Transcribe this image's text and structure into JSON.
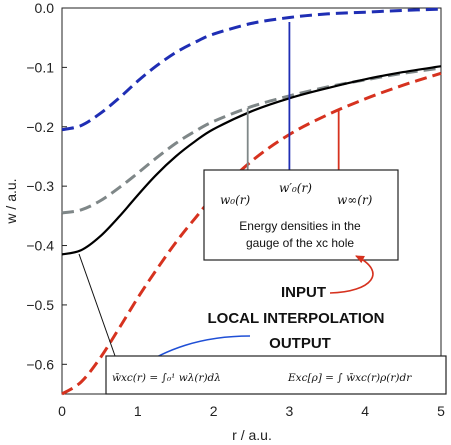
{
  "chart_data": {
    "type": "line",
    "title": "",
    "xlabel": "r / a.u.",
    "ylabel": "w / a.u.",
    "xlim": [
      0,
      5
    ],
    "ylim": [
      -0.65,
      0
    ],
    "xticks": [
      "0",
      "1",
      "2",
      "3",
      "4",
      "5"
    ],
    "yticks": [
      "0.0",
      "−0.1",
      "−0.2",
      "−0.3",
      "−0.4",
      "−0.5",
      "−0.6"
    ],
    "grid": false,
    "series": [
      {
        "key": "w0prime",
        "color": "#1f2eb4",
        "style": "dashed",
        "x": [
          0,
          0.25,
          0.5,
          0.75,
          1.0,
          1.25,
          1.5,
          1.75,
          2.0,
          2.5,
          3.0,
          3.5,
          4.0,
          4.5,
          5.0
        ],
        "y": [
          -0.205,
          -0.198,
          -0.178,
          -0.152,
          -0.123,
          -0.097,
          -0.075,
          -0.058,
          -0.044,
          -0.026,
          -0.016,
          -0.01,
          -0.007,
          -0.004,
          -0.002
        ]
      },
      {
        "key": "w0",
        "color": "#7f8788",
        "style": "dashed",
        "x": [
          0,
          0.25,
          0.5,
          0.75,
          1.0,
          1.25,
          1.5,
          1.75,
          2.0,
          2.5,
          3.0,
          3.5,
          4.0,
          4.5,
          5.0
        ],
        "y": [
          -0.345,
          -0.34,
          -0.325,
          -0.303,
          -0.278,
          -0.252,
          -0.228,
          -0.208,
          -0.191,
          -0.166,
          -0.148,
          -0.133,
          -0.121,
          -0.11,
          -0.101
        ]
      },
      {
        "key": "w_exact",
        "color": "#000000",
        "style": "solid",
        "x": [
          0,
          0.25,
          0.5,
          0.75,
          1.0,
          1.25,
          1.5,
          1.75,
          2.0,
          2.5,
          3.0,
          3.5,
          4.0,
          4.5,
          5.0
        ],
        "y": [
          -0.415,
          -0.408,
          -0.385,
          -0.352,
          -0.315,
          -0.28,
          -0.25,
          -0.225,
          -0.204,
          -0.174,
          -0.152,
          -0.135,
          -0.12,
          -0.108,
          -0.098
        ]
      },
      {
        "key": "winf",
        "color": "#d6321f",
        "style": "dashed",
        "x": [
          0,
          0.25,
          0.5,
          0.75,
          1.0,
          1.25,
          1.5,
          1.75,
          2.0,
          2.5,
          3.0,
          3.5,
          4.0,
          4.5,
          5.0
        ],
        "y": [
          -0.655,
          -0.63,
          -0.59,
          -0.54,
          -0.488,
          -0.44,
          -0.395,
          -0.355,
          -0.318,
          -0.258,
          -0.213,
          -0.18,
          -0.153,
          -0.13,
          -0.11
        ]
      }
    ],
    "markers": [
      {
        "key": "w0",
        "x": 2.45,
        "color": "#7f8788"
      },
      {
        "key": "w0prime",
        "x": 3.0,
        "color": "#1f2eb4"
      },
      {
        "key": "winf",
        "x": 3.65,
        "color": "#d6321f"
      }
    ],
    "labels": {
      "w0": "w₀(r)",
      "w0prime": "w′₀(r)",
      "winf": "w∞(r)",
      "box_line1": "Energy densities in the",
      "box_line2": "gauge of the xc hole",
      "input": "INPUT",
      "local_interpolation": "LOCAL INTERPOLATION",
      "output": "OUTPUT",
      "formula_wbar": "w̄xc(r) = ∫₀¹ wλ(r)dλ",
      "formula_exc": "Exc[ρ] = ∫ w̄xc(r)ρ(r)dr"
    }
  }
}
